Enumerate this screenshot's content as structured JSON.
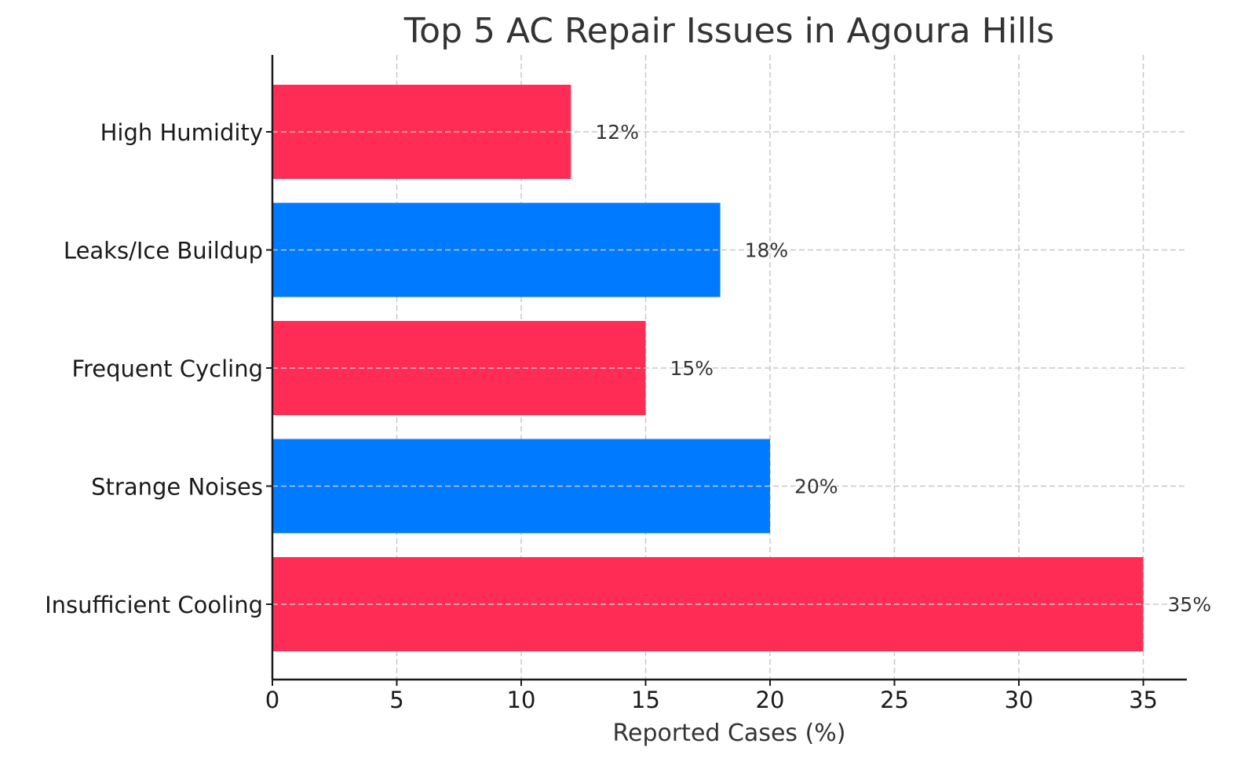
{
  "chart_data": {
    "type": "bar",
    "orientation": "horizontal",
    "title": "Top 5 AC Repair Issues in Agoura Hills",
    "xlabel": "Reported Cases (%)",
    "ylabel": "",
    "categories": [
      "Insufficient Cooling",
      "Strange Noises",
      "Frequent Cycling",
      "Leaks/Ice Buildup",
      "High Humidity"
    ],
    "values": [
      35,
      20,
      15,
      18,
      12
    ],
    "data_labels": [
      "35%",
      "20%",
      "15%",
      "18%",
      "12%"
    ],
    "bar_colors": [
      "#ff2d55",
      "#007aff",
      "#ff2d55",
      "#007aff",
      "#ff2d55"
    ],
    "xlim": [
      0,
      36.75
    ],
    "xticks": [
      0,
      5,
      10,
      15,
      20,
      25,
      30,
      35
    ],
    "xtick_labels": [
      "0",
      "5",
      "10",
      "15",
      "20",
      "25",
      "30",
      "35"
    ],
    "grid": true,
    "legend": "none"
  }
}
